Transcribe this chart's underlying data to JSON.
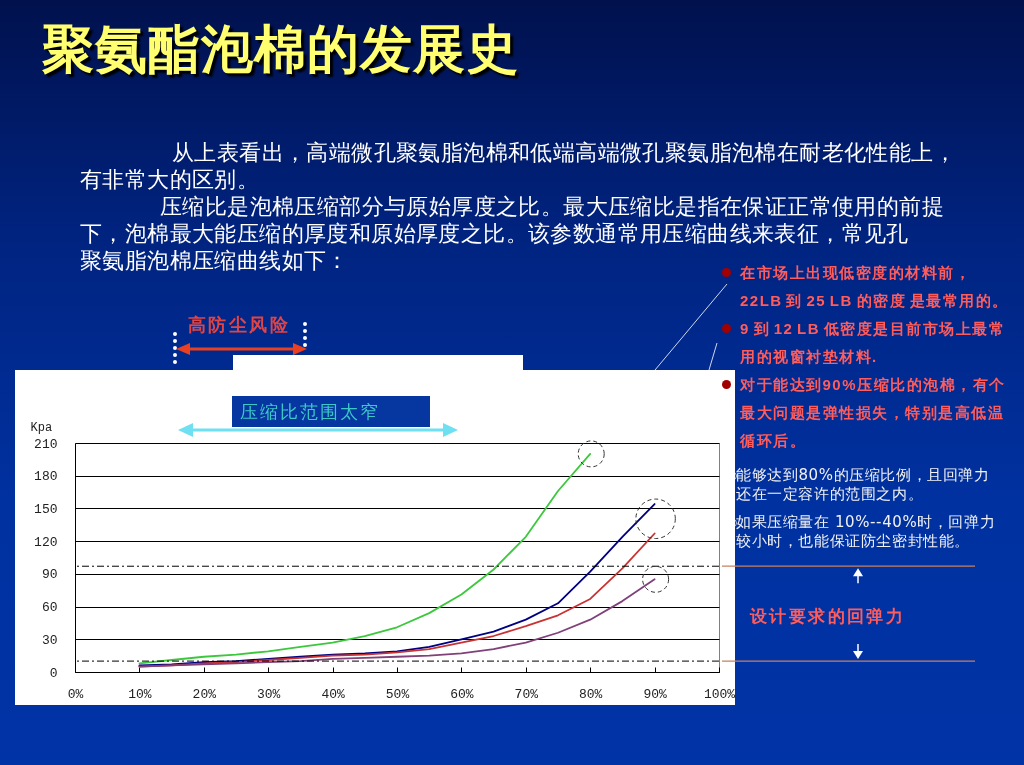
{
  "chart_data": {
    "type": "line",
    "title": "聚氨酯泡棉的发展史",
    "ylabel": "Kpa",
    "annotations": [
      "从上表看出，高端微孔聚氨脂泡棉和低端高端微孔聚氨脂泡棉在耐老化性能上，有非常大的区别。",
      "压缩比是泡棉压缩部分与原始厚度之比。最大压缩比是指在保证正常使用的前提下，泡棉最大能压缩的厚度和原始厚度之比。该参数通常用压缩曲线来表征，常见孔",
      "聚氨脂泡棉压缩曲线如下：",
      "高防尘风险",
      "压缩比范围太窄",
      "在市场上出现低密度的材料前，22LB 到 25 LB 的密度 是最常用的。",
      "9 到 12 LB 低密度是目前市场上最常用的视窗衬垫材料.",
      "对于能达到90%压缩比的泡棉，有个最大问题是弹性损失，特别是高低温循环后。",
      "能够达到80%的压缩比例，且回弹力还在一定容许的范围之内。",
      "如果压缩量在 10%--40%时，回弹力较小时，也能保证防尘密封性能。",
      "设计要求的回弹力"
    ],
    "xlim": [
      0,
      100
    ],
    "xticks": [
      {
        "value": 0,
        "label": "0%"
      },
      {
        "value": 10,
        "label": "10%"
      },
      {
        "value": 20,
        "label": "20%"
      },
      {
        "value": 30,
        "label": "30%"
      },
      {
        "value": 40,
        "label": "40%"
      },
      {
        "value": 50,
        "label": "50%"
      },
      {
        "value": 60,
        "label": "60%"
      },
      {
        "value": 70,
        "label": "70%"
      },
      {
        "value": 80,
        "label": "80%"
      },
      {
        "value": 90,
        "label": "90%"
      },
      {
        "value": 100,
        "label": "100%"
      }
    ],
    "ylim": [
      0,
      210
    ],
    "yticks": [
      0,
      30,
      60,
      90,
      120,
      150,
      180,
      210
    ],
    "grid": "y",
    "series": [
      {
        "color": "#3cc83c",
        "x": [
          10,
          15,
          20,
          25,
          30,
          35,
          40,
          45,
          50,
          55,
          60,
          65,
          70,
          75,
          80
        ],
        "values": [
          8,
          11,
          14,
          16,
          19,
          23,
          27,
          33,
          41,
          54,
          71,
          94,
          124,
          166,
          200
        ]
      },
      {
        "color": "#000080",
        "x": [
          10,
          15,
          20,
          25,
          30,
          35,
          40,
          45,
          50,
          55,
          60,
          65,
          70,
          75,
          80,
          85,
          90
        ],
        "values": [
          6,
          7,
          9,
          10,
          12,
          14,
          16,
          17,
          19,
          23,
          30,
          37,
          48,
          63,
          92,
          124,
          154
        ]
      },
      {
        "color": "#c83232",
        "x": [
          10,
          15,
          20,
          25,
          30,
          35,
          40,
          45,
          50,
          55,
          60,
          65,
          70,
          75,
          80,
          85,
          90
        ],
        "values": [
          5,
          6,
          8,
          9,
          11,
          13,
          15,
          16,
          18,
          21,
          27,
          33,
          42,
          52,
          67,
          95,
          127
        ]
      },
      {
        "color": "#804078",
        "x": [
          10,
          15,
          20,
          25,
          30,
          35,
          40,
          45,
          50,
          55,
          60,
          65,
          70,
          75,
          80,
          85,
          90
        ],
        "values": [
          5,
          6,
          7,
          8,
          9,
          10,
          12,
          13,
          14,
          15,
          17,
          21,
          27,
          36,
          48,
          65,
          85
        ]
      }
    ],
    "ref_lines": [
      {
        "axis": "y",
        "value": 97,
        "color": "#000000",
        "line_style": "dashed"
      },
      {
        "axis": "y",
        "value": 10,
        "color": "#000000",
        "line_style": "dashed"
      }
    ]
  }
}
